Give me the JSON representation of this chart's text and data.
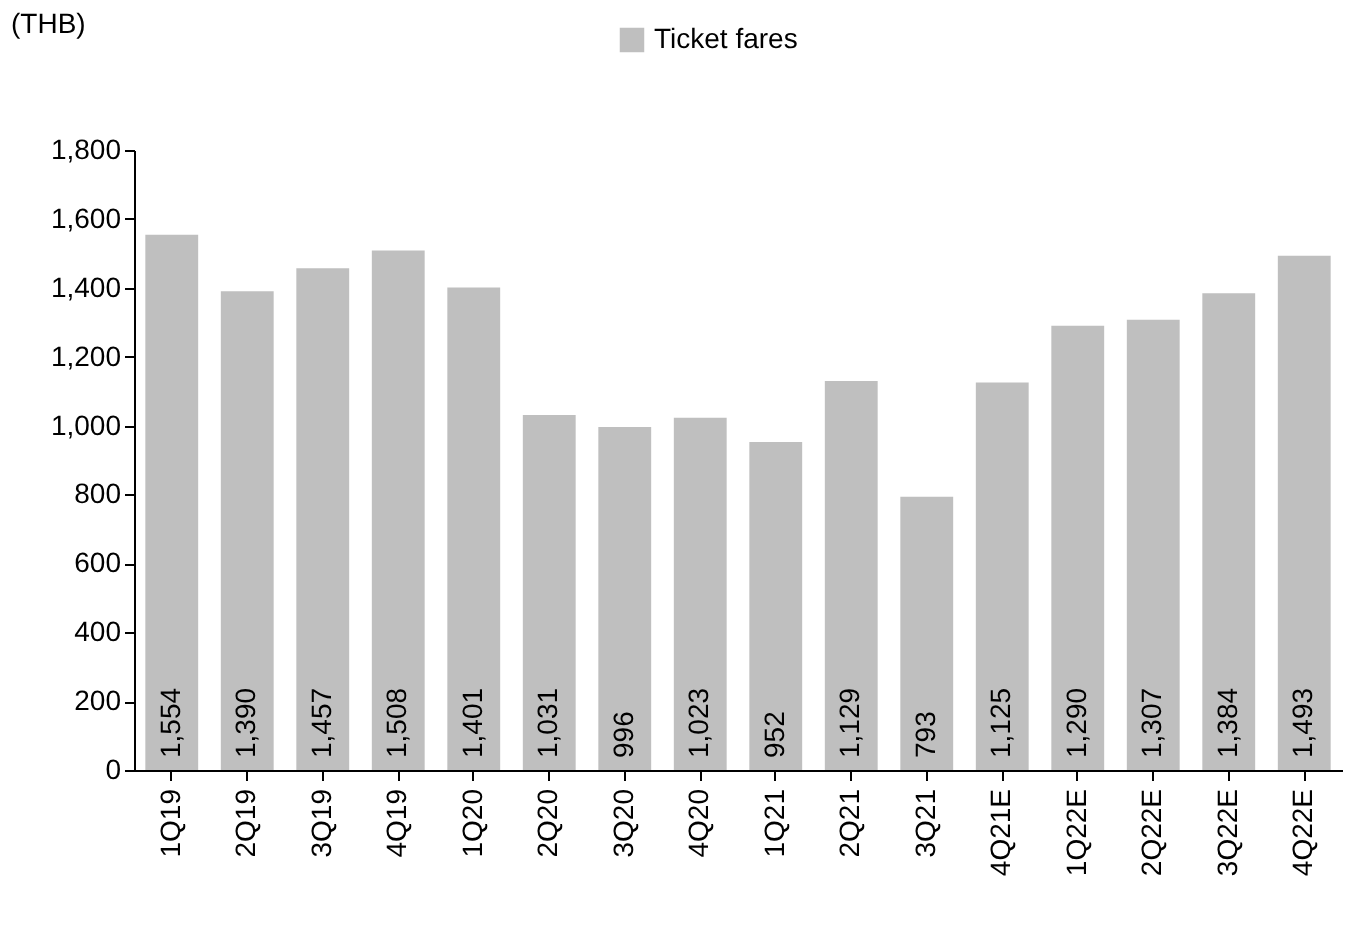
{
  "chart_data": {
    "type": "bar",
    "ylabel": "(THB)",
    "categories": [
      "1Q19",
      "2Q19",
      "3Q19",
      "4Q19",
      "1Q20",
      "2Q20",
      "3Q20",
      "4Q20",
      "1Q21",
      "2Q21",
      "3Q21",
      "4Q21E",
      "1Q22E",
      "2Q22E",
      "3Q22E",
      "4Q22E"
    ],
    "series": [
      {
        "name": "Ticket fares",
        "color": "#bfbfbf",
        "values": [
          1554,
          1390,
          1457,
          1508,
          1401,
          1031,
          996,
          1023,
          952,
          1129,
          793,
          1125,
          1290,
          1307,
          1384,
          1493
        ],
        "value_labels": [
          "1,554",
          "1,390",
          "1,457",
          "1,508",
          "1,401",
          "1,031",
          "996",
          "1,023",
          "952",
          "1,129",
          "793",
          "1,125",
          "1,290",
          "1,307",
          "1,384",
          "1,493"
        ]
      }
    ],
    "ylim": [
      0,
      1800
    ],
    "yticks": [
      0,
      200,
      400,
      600,
      800,
      {
        "value": 1000,
        "label": "1,000"
      },
      {
        "value": 1200,
        "label": "1,200"
      },
      {
        "value": 1400,
        "label": "1,400"
      },
      {
        "value": 1600,
        "label": "1,600"
      },
      {
        "value": 1800,
        "label": "1,800"
      }
    ],
    "grid": false,
    "legend": "top"
  }
}
